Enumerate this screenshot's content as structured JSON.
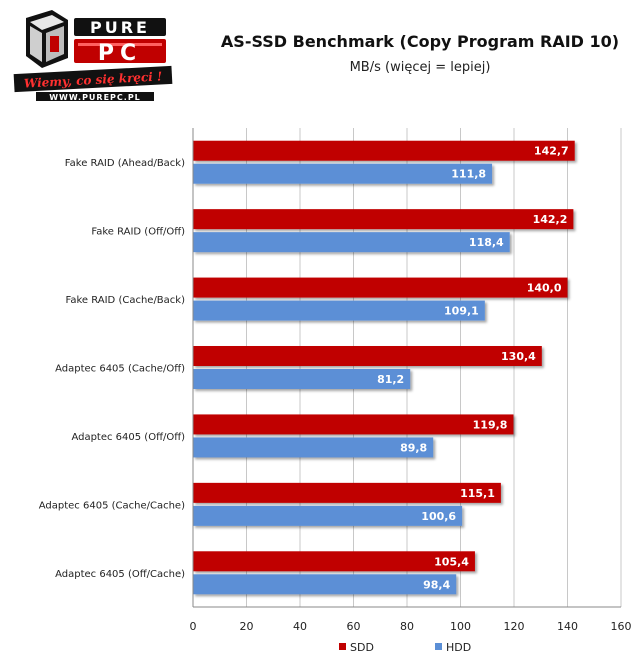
{
  "logo": {
    "brand_top": "PURE",
    "brand_bottom": "PC",
    "slogan": "Wiemy, co się kręci !",
    "url": "WWW.PUREPC.PL"
  },
  "chart_data": {
    "type": "bar",
    "orientation": "horizontal",
    "title": "AS-SSD Benchmark (Copy Program RAID 10)",
    "subtitle": "MB/s (więcej = lepiej)",
    "categories": [
      "Fake RAID (Ahead/Back)",
      "Fake RAID (Off/Off)",
      "Fake RAID (Cache/Back)",
      "Adaptec 6405  (Cache/Off)",
      "Adaptec 6405  (Off/Off)",
      "Adaptec 6405  (Cache/Cache)",
      "Adaptec 6405  (Off/Cache)"
    ],
    "series": [
      {
        "name": "SDD",
        "color": "#c00000",
        "values": [
          142.7,
          142.2,
          140.0,
          130.4,
          119.8,
          115.1,
          105.4
        ],
        "labels": [
          "142,7",
          "142,2",
          "140,0",
          "130,4",
          "119,8",
          "115,1",
          "105,4"
        ]
      },
      {
        "name": "HDD",
        "color": "#5b8fd6",
        "values": [
          111.8,
          118.4,
          109.1,
          81.2,
          89.8,
          100.6,
          98.4
        ],
        "labels": [
          "111,8",
          "118,4",
          "109,1",
          "81,2",
          "89,8",
          "100,6",
          "98,4"
        ]
      }
    ],
    "xlim": [
      0,
      160
    ],
    "xticks": [
      "0",
      "20",
      "40",
      "60",
      "80",
      "100",
      "120",
      "140",
      "160"
    ],
    "grid": true,
    "legend_position": "bottom"
  }
}
